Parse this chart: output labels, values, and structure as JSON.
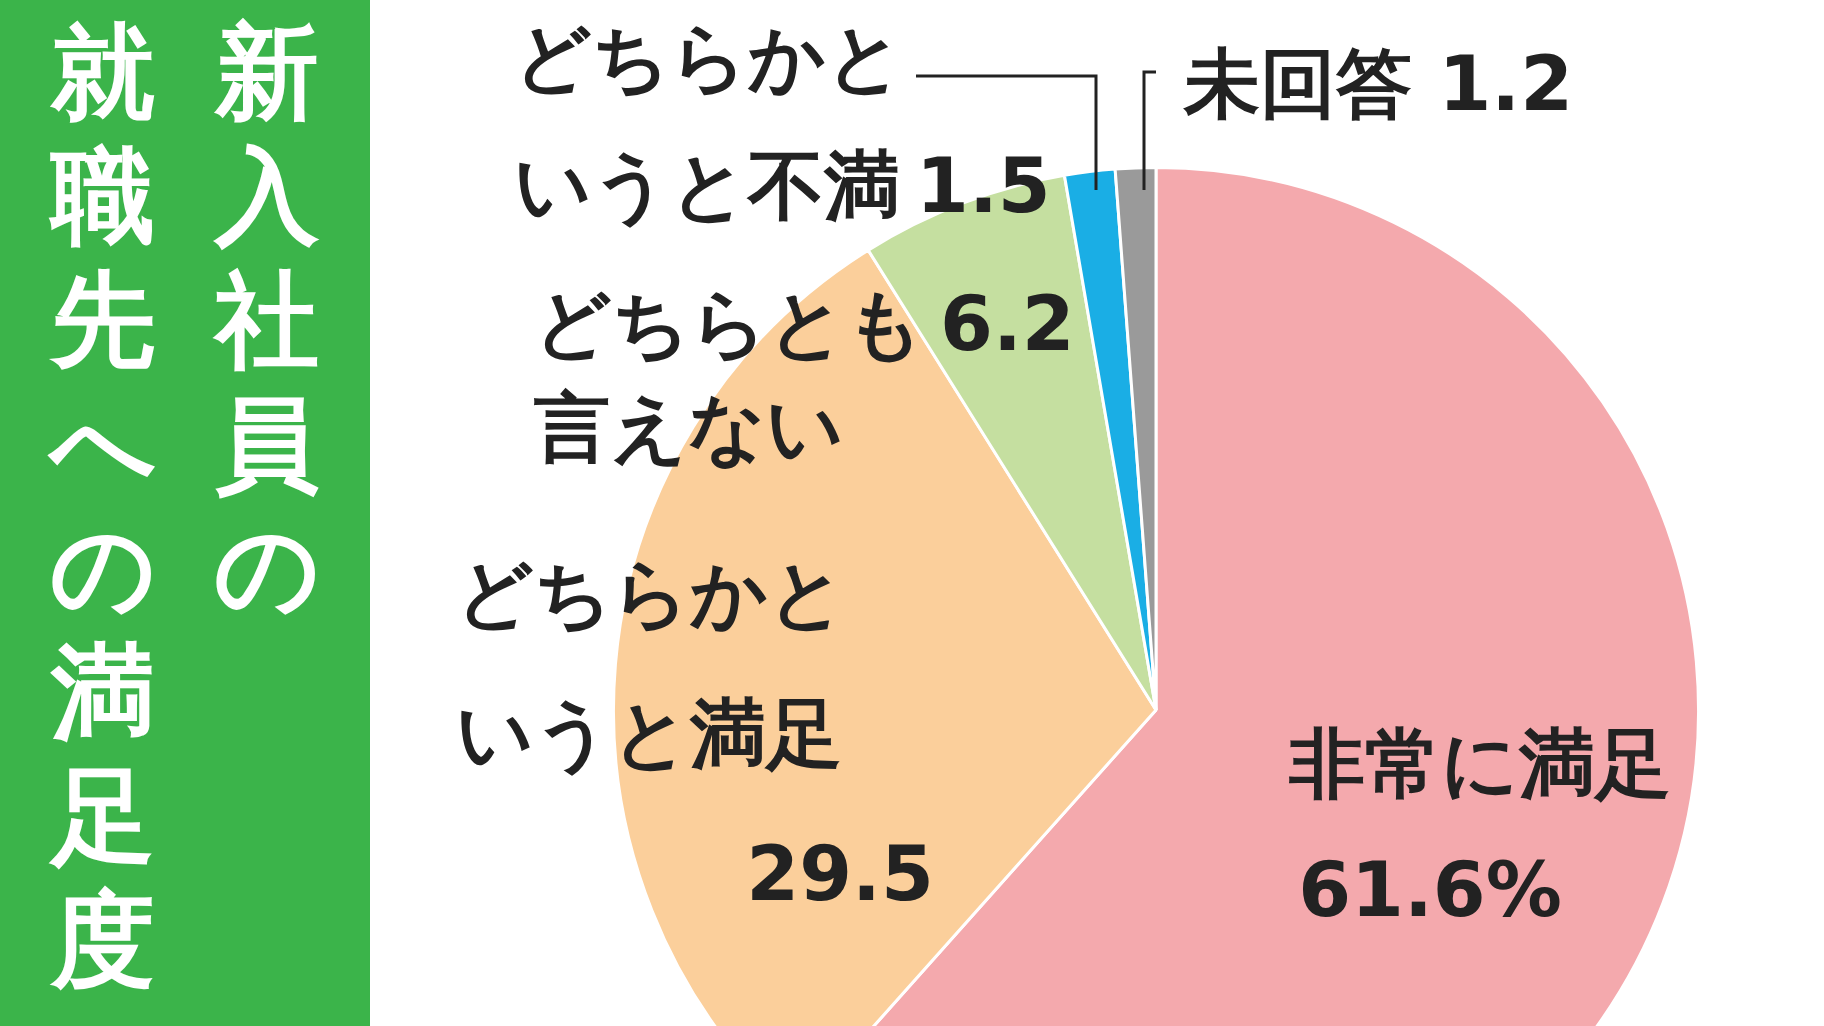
{
  "chart_data": {
    "type": "pie",
    "title": "新入社員の就職先への満足度",
    "categories": [
      "非常に満足",
      "どちらかというと満足",
      "どちらとも言えない",
      "どちらかというと不満",
      "未回答"
    ],
    "values": [
      61.6,
      29.5,
      6.2,
      1.5,
      1.2
    ],
    "colors": [
      "#f4a9ad",
      "#fbcf9b",
      "#c5dfa0",
      "#1aaee5",
      "#9a9a9a"
    ],
    "value_labels": [
      "61.6%",
      "29.5",
      "6.2",
      "1.5",
      "1.2"
    ],
    "legend": false
  }
}
